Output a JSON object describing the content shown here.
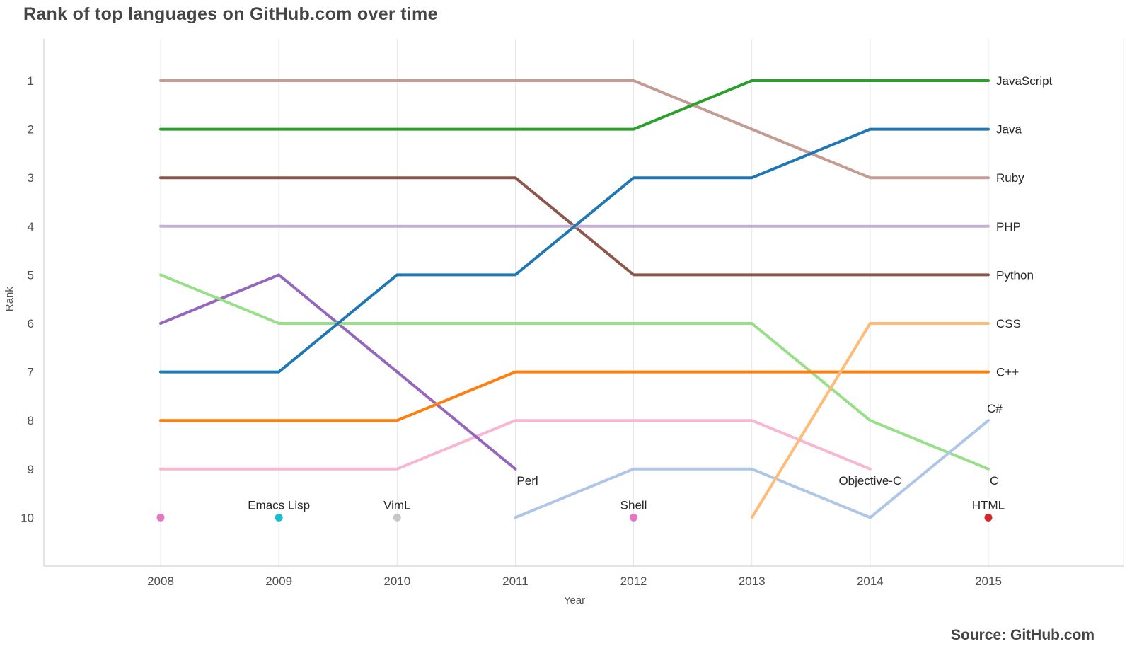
{
  "page": {
    "title": "Rank of top languages on GitHub.com over time",
    "source": "Source: GitHub.com"
  },
  "chart_data": {
    "type": "line",
    "title": "Rank of top languages on GitHub.com over time",
    "xlabel": "Year",
    "ylabel": "Rank",
    "x_ticks": [
      2008,
      2009,
      2010,
      2011,
      2012,
      2013,
      2014,
      2015
    ],
    "y_ticks": [
      1,
      2,
      3,
      4,
      5,
      6,
      7,
      8,
      9,
      10
    ],
    "xlim": [
      2008,
      2015
    ],
    "ylim": [
      1,
      10
    ],
    "y_axis_inverted": true,
    "grid": "vertical",
    "legend_position": "line-end-labels",
    "series": [
      {
        "name": "JavaScript",
        "color": "#2ca02c",
        "label_placement": "right",
        "points": [
          [
            2008,
            2
          ],
          [
            2009,
            2
          ],
          [
            2010,
            2
          ],
          [
            2011,
            2
          ],
          [
            2012,
            2
          ],
          [
            2013,
            1
          ],
          [
            2014,
            1
          ],
          [
            2015,
            1
          ]
        ]
      },
      {
        "name": "Java",
        "color": "#1f77b4",
        "label_placement": "right",
        "points": [
          [
            2008,
            7
          ],
          [
            2009,
            7
          ],
          [
            2010,
            5
          ],
          [
            2011,
            5
          ],
          [
            2012,
            3
          ],
          [
            2013,
            3
          ],
          [
            2014,
            2
          ],
          [
            2015,
            2
          ]
        ]
      },
      {
        "name": "Ruby",
        "color": "#c49c94",
        "label_placement": "right",
        "points": [
          [
            2008,
            1
          ],
          [
            2009,
            1
          ],
          [
            2010,
            1
          ],
          [
            2011,
            1
          ],
          [
            2012,
            1
          ],
          [
            2013,
            2
          ],
          [
            2014,
            3
          ],
          [
            2015,
            3
          ]
        ]
      },
      {
        "name": "PHP",
        "color": "#c5b0d5",
        "label_placement": "right",
        "points": [
          [
            2008,
            4
          ],
          [
            2009,
            4
          ],
          [
            2010,
            4
          ],
          [
            2011,
            4
          ],
          [
            2012,
            4
          ],
          [
            2013,
            4
          ],
          [
            2014,
            4
          ],
          [
            2015,
            4
          ]
        ]
      },
      {
        "name": "Python",
        "color": "#8c564b",
        "label_placement": "right",
        "points": [
          [
            2008,
            3
          ],
          [
            2009,
            3
          ],
          [
            2010,
            3
          ],
          [
            2011,
            3
          ],
          [
            2012,
            5
          ],
          [
            2013,
            5
          ],
          [
            2014,
            5
          ],
          [
            2015,
            5
          ]
        ]
      },
      {
        "name": "CSS",
        "color": "#ffbb78",
        "label_placement": "right",
        "points": [
          [
            2013,
            10
          ],
          [
            2014,
            6
          ],
          [
            2015,
            6
          ]
        ]
      },
      {
        "name": "C++",
        "color": "#ff7f0e",
        "label_placement": "right",
        "points": [
          [
            2008,
            8
          ],
          [
            2009,
            8
          ],
          [
            2010,
            8
          ],
          [
            2011,
            7
          ],
          [
            2012,
            7
          ],
          [
            2013,
            7
          ],
          [
            2014,
            7
          ],
          [
            2015,
            7
          ]
        ]
      },
      {
        "name": "C#",
        "color": "#aec7e8",
        "label_placement": "above",
        "points": [
          [
            2011,
            10
          ],
          [
            2012,
            9
          ],
          [
            2013,
            9
          ],
          [
            2014,
            10
          ],
          [
            2015,
            8
          ]
        ]
      },
      {
        "name": "C",
        "color": "#98df8a",
        "label_placement": "below",
        "points": [
          [
            2008,
            5
          ],
          [
            2009,
            6
          ],
          [
            2010,
            6
          ],
          [
            2011,
            6
          ],
          [
            2012,
            6
          ],
          [
            2013,
            6
          ],
          [
            2014,
            8
          ],
          [
            2015,
            9
          ]
        ]
      },
      {
        "name": "Perl",
        "color": "#9467bd",
        "label_placement": "below",
        "points": [
          [
            2008,
            6
          ],
          [
            2009,
            5
          ],
          [
            2010,
            7
          ],
          [
            2011,
            9
          ]
        ]
      },
      {
        "name": "Objective-C",
        "color": "#f7b6d2",
        "label_placement": "below-middle",
        "points": [
          [
            2008,
            9
          ],
          [
            2009,
            9
          ],
          [
            2010,
            9
          ],
          [
            2011,
            8
          ],
          [
            2012,
            8
          ],
          [
            2013,
            8
          ],
          [
            2014,
            9
          ]
        ]
      }
    ],
    "point_annotations": [
      {
        "label": "",
        "x": 2008,
        "rank": 10,
        "color": "#e377c2"
      },
      {
        "label": "Emacs Lisp",
        "x": 2009,
        "rank": 10,
        "color": "#17becf"
      },
      {
        "label": "VimL",
        "x": 2010,
        "rank": 10,
        "color": "#c7c7c7"
      },
      {
        "label": "Shell",
        "x": 2012,
        "rank": 10,
        "color": "#e377c2"
      },
      {
        "label": "HTML",
        "x": 2015,
        "rank": 10,
        "color": "#d62728"
      }
    ]
  }
}
